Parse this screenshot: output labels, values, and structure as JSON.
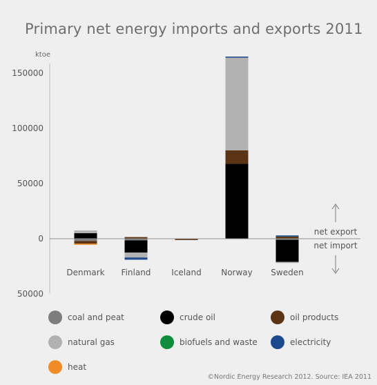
{
  "chart_data": {
    "type": "bar",
    "stacked": true,
    "title": "Primary net energy imports and exports 2011",
    "unit_label": "ktoe",
    "categories": [
      "Denmark",
      "Finland",
      "Iceland",
      "Norway",
      "Sweden"
    ],
    "y_ticks": [
      {
        "value": 150000,
        "label": "150000"
      },
      {
        "value": 100000,
        "label": "100000"
      },
      {
        "value": 50000,
        "label": "50000"
      },
      {
        "value": 0,
        "label": "0"
      },
      {
        "value": -50000,
        "label": "50000"
      }
    ],
    "ylim": [
      -50000,
      165000
    ],
    "annotations": {
      "export": "net export",
      "import": "net import"
    },
    "series": [
      {
        "name": "coal and peat",
        "color": "#7d7d7d",
        "values": [
          -2000,
          -1500,
          -200,
          0,
          -1000
        ]
      },
      {
        "name": "crude oil",
        "color": "#000000",
        "values": [
          5000,
          -11000,
          0,
          68000,
          -20000
        ]
      },
      {
        "name": "oil products",
        "color": "#5a3414",
        "values": [
          -2500,
          1500,
          -1000,
          12000,
          2000
        ]
      },
      {
        "name": "natural gas",
        "color": "#b2b2b2",
        "values": [
          2500,
          -4500,
          0,
          84000,
          -1000
        ]
      },
      {
        "name": "biofuels and waste",
        "color": "#0f8c3c",
        "values": [
          0,
          0,
          0,
          0,
          0
        ]
      },
      {
        "name": "electricity",
        "color": "#1e4a8c",
        "values": [
          0,
          -2000,
          0,
          1000,
          1000
        ]
      },
      {
        "name": "heat",
        "color": "#f08c28",
        "values": [
          -1000,
          0,
          0,
          0,
          0
        ]
      }
    ],
    "legend_position": "bottom",
    "grid": false
  },
  "credit": "©Nordic Energy Research 2012. Source: IEA 2011"
}
